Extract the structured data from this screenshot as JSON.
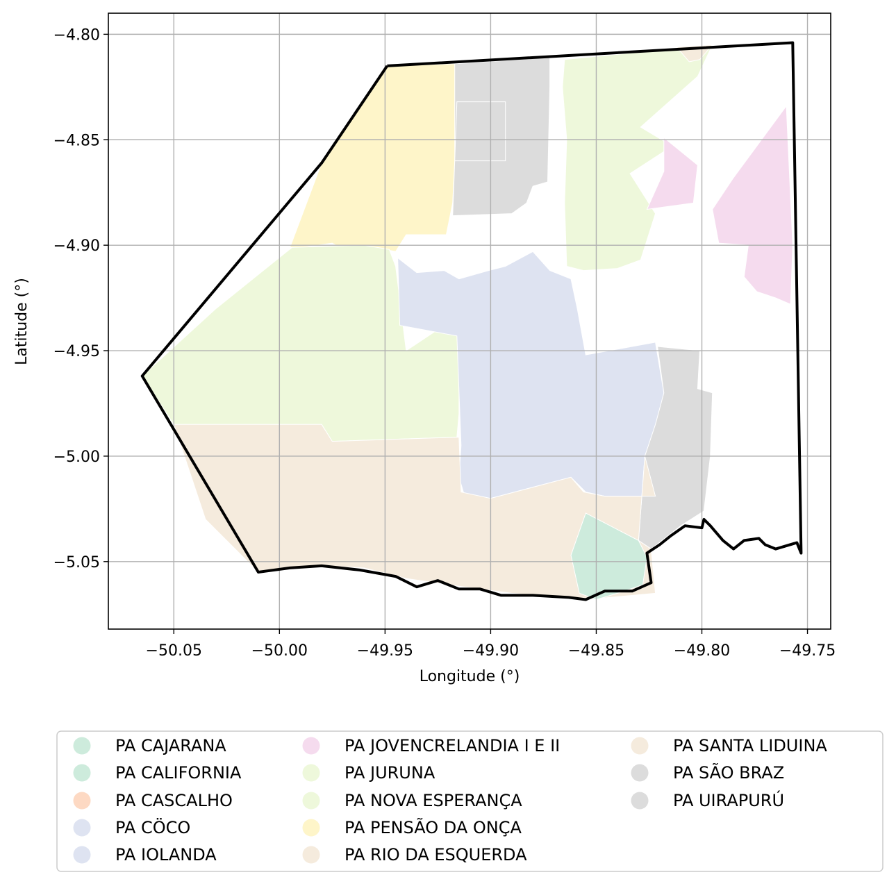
{
  "chart_data": {
    "type": "map",
    "xlabel": "Longitude (°)",
    "ylabel": "Latitude (°)",
    "xlim": [
      -50.081,
      -49.739
    ],
    "ylim": [
      -5.082,
      -4.79
    ],
    "grid": true,
    "x_ticks": [
      -50.05,
      -50.0,
      -49.95,
      -49.9,
      -49.85,
      -49.8,
      -49.75
    ],
    "x_tick_labels": [
      "−50.05",
      "−50.00",
      "−49.95",
      "−49.90",
      "−49.85",
      "−49.80",
      "−49.75"
    ],
    "y_ticks": [
      -4.8,
      -4.85,
      -4.9,
      -4.95,
      -5.0,
      -5.05
    ],
    "y_tick_labels": [
      "−4.80",
      "−4.85",
      "−4.90",
      "−4.95",
      "−5.00",
      "−5.05"
    ],
    "legend_placement": "below",
    "boundary_color": "#000000",
    "legend": [
      {
        "label": "PA CAJARANA",
        "color": "#cdebdc"
      },
      {
        "label": "PA CALIFORNIA",
        "color": "#cdebdc"
      },
      {
        "label": "PA CASCALHO",
        "color": "#fdd9c3"
      },
      {
        "label": "PA CÖCO",
        "color": "#dee3f1"
      },
      {
        "label": "PA IOLANDA",
        "color": "#dee3f1"
      },
      {
        "label": "PA JOVENCRELANDIA I E II",
        "color": "#f5dbee"
      },
      {
        "label": "PA JURUNA",
        "color": "#eef8db"
      },
      {
        "label": "PA NOVA ESPERANÇA",
        "color": "#eef8db"
      },
      {
        "label": "PA PENSÃO DA ONÇA",
        "color": "#fef5c9"
      },
      {
        "label": "PA RIO DA ESQUERDA",
        "color": "#f5ebdd"
      },
      {
        "label": "PA SANTA LIDUINA",
        "color": "#f5ebdd"
      },
      {
        "label": "PA SÃO BRAZ",
        "color": "#dcdcdc"
      },
      {
        "label": "PA UIRAPURÚ",
        "color": "#dcdcdc"
      }
    ],
    "regions": [
      {
        "name": "PA PENSÃO DA ONÇA",
        "color": "#fef5c9",
        "coords": [
          [
            -49.949,
            -4.815
          ],
          [
            -49.917,
            -4.814
          ],
          [
            -49.916,
            -4.832
          ],
          [
            -49.917,
            -4.86
          ],
          [
            -49.918,
            -4.88
          ],
          [
            -49.921,
            -4.895
          ],
          [
            -49.94,
            -4.895
          ],
          [
            -49.945,
            -4.903
          ],
          [
            -49.96,
            -4.9
          ],
          [
            -49.968,
            -4.903
          ],
          [
            -49.975,
            -4.899
          ],
          [
            -49.989,
            -4.901
          ],
          [
            -49.995,
            -4.901
          ],
          [
            -49.98,
            -4.861
          ]
        ]
      },
      {
        "name": "PA NOVA ESPERANÇA",
        "color": "#eef8db",
        "coords": [
          [
            -49.994,
            -4.901
          ],
          [
            -49.96,
            -4.9
          ],
          [
            -49.948,
            -4.902
          ],
          [
            -49.945,
            -4.91
          ],
          [
            -49.94,
            -4.95
          ],
          [
            -49.922,
            -4.938
          ],
          [
            -49.915,
            -4.94
          ],
          [
            -49.915,
            -4.98
          ],
          [
            -49.916,
            -4.991
          ],
          [
            -49.975,
            -4.993
          ],
          [
            -49.98,
            -4.985
          ],
          [
            -50.05,
            -4.985
          ],
          [
            -50.065,
            -4.962
          ],
          [
            -50.03,
            -4.93
          ]
        ]
      },
      {
        "name": "PA JURUNA",
        "color": "#eef8db",
        "coords": [
          [
            -49.865,
            -4.812
          ],
          [
            -49.795,
            -4.805
          ],
          [
            -49.802,
            -4.82
          ],
          [
            -49.829,
            -4.844
          ],
          [
            -49.814,
            -4.853
          ],
          [
            -49.834,
            -4.866
          ],
          [
            -49.822,
            -4.885
          ],
          [
            -49.829,
            -4.907
          ],
          [
            -49.84,
            -4.911
          ],
          [
            -49.856,
            -4.912
          ],
          [
            -49.864,
            -4.91
          ],
          [
            -49.865,
            -4.88
          ],
          [
            -49.864,
            -4.85
          ],
          [
            -49.866,
            -4.825
          ]
        ]
      },
      {
        "name": "PA JOVENCRELANDIA I E II",
        "color": "#f5dbee",
        "coords": [
          [
            -49.818,
            -4.849
          ],
          [
            -49.802,
            -4.862
          ],
          [
            -49.804,
            -4.88
          ],
          [
            -49.826,
            -4.883
          ],
          [
            -49.818,
            -4.865
          ]
        ]
      },
      {
        "name": "PA JOVENCRELANDIA I E II",
        "color": "#f5dbee",
        "coords": [
          [
            -49.76,
            -4.834
          ],
          [
            -49.785,
            -4.868
          ],
          [
            -49.795,
            -4.883
          ],
          [
            -49.792,
            -4.899
          ],
          [
            -49.778,
            -4.9
          ],
          [
            -49.78,
            -4.915
          ],
          [
            -49.774,
            -4.922
          ],
          [
            -49.765,
            -4.925
          ],
          [
            -49.758,
            -4.928
          ],
          [
            -49.757,
            -4.9
          ]
        ]
      },
      {
        "name": "PA UIRAPURÚ",
        "color": "#dcdcdc",
        "coords": [
          [
            -49.917,
            -4.814
          ],
          [
            -49.872,
            -4.811
          ],
          [
            -49.872,
            -4.825
          ],
          [
            -49.873,
            -4.87
          ],
          [
            -49.88,
            -4.872
          ],
          [
            -49.883,
            -4.88
          ],
          [
            -49.89,
            -4.885
          ],
          [
            -49.918,
            -4.886
          ],
          [
            -49.917,
            -4.86
          ],
          [
            -49.916,
            -4.832
          ],
          [
            -49.893,
            -4.832
          ],
          [
            -49.893,
            -4.86
          ],
          [
            -49.917,
            -4.86
          ]
        ]
      },
      {
        "name": "PA IOLANDA",
        "color": "#dee3f1",
        "coords": [
          [
            -49.944,
            -4.906
          ],
          [
            -49.935,
            -4.913
          ],
          [
            -49.922,
            -4.912
          ],
          [
            -49.915,
            -4.916
          ],
          [
            -49.901,
            -4.912
          ],
          [
            -49.893,
            -4.91
          ],
          [
            -49.88,
            -4.903
          ],
          [
            -49.872,
            -4.912
          ],
          [
            -49.862,
            -4.916
          ],
          [
            -49.859,
            -4.93
          ],
          [
            -49.855,
            -4.952
          ],
          [
            -49.822,
            -4.946
          ],
          [
            -49.818,
            -4.97
          ],
          [
            -49.825,
            -5.001
          ],
          [
            -49.822,
            -5.019
          ],
          [
            -49.846,
            -5.019
          ],
          [
            -49.855,
            -5.017
          ],
          [
            -49.862,
            -5.01
          ],
          [
            -49.9,
            -5.02
          ],
          [
            -49.912,
            -5.02
          ],
          [
            -49.915,
            -5.01
          ],
          [
            -49.914,
            -4.995
          ],
          [
            -49.916,
            -4.943
          ],
          [
            -49.943,
            -4.938
          ]
        ]
      },
      {
        "name": "PA SÃO BRAZ",
        "color": "#dcdcdc",
        "coords": [
          [
            -49.821,
            -4.948
          ],
          [
            -49.801,
            -4.95
          ],
          [
            -49.802,
            -4.968
          ],
          [
            -49.795,
            -4.97
          ],
          [
            -49.796,
            -5.0
          ],
          [
            -49.799,
            -5.026
          ],
          [
            -49.81,
            -5.033
          ],
          [
            -49.824,
            -5.044
          ],
          [
            -49.83,
            -5.04
          ],
          [
            -49.827,
            -5.0
          ],
          [
            -49.822,
            -4.985
          ],
          [
            -49.818,
            -4.97
          ]
        ]
      },
      {
        "name": "PA RIO DA ESQUERDA",
        "color": "#f5ebdd",
        "coords": [
          [
            -50.05,
            -4.985
          ],
          [
            -49.98,
            -4.985
          ],
          [
            -49.975,
            -4.993
          ],
          [
            -49.915,
            -4.991
          ],
          [
            -49.914,
            -5.017
          ],
          [
            -49.9,
            -5.02
          ],
          [
            -49.862,
            -5.01
          ],
          [
            -49.856,
            -5.017
          ],
          [
            -49.846,
            -5.019
          ],
          [
            -49.822,
            -5.019
          ],
          [
            -49.827,
            -5.0
          ],
          [
            -49.83,
            -5.04
          ],
          [
            -49.824,
            -5.044
          ],
          [
            -49.822,
            -5.065
          ],
          [
            -49.855,
            -5.068
          ],
          [
            -49.87,
            -5.067
          ],
          [
            -49.89,
            -5.065
          ],
          [
            -49.92,
            -5.061
          ],
          [
            -49.94,
            -5.058
          ],
          [
            -49.96,
            -5.053
          ],
          [
            -49.98,
            -5.052
          ],
          [
            -50.01,
            -5.055
          ],
          [
            -50.035,
            -5.03
          ]
        ]
      },
      {
        "name": "PA CALIFORNIA",
        "color": "#cdebdc",
        "coords": [
          [
            -49.855,
            -5.027
          ],
          [
            -49.862,
            -5.047
          ],
          [
            -49.858,
            -5.065
          ],
          [
            -49.85,
            -5.068
          ],
          [
            -49.84,
            -5.065
          ],
          [
            -49.828,
            -5.061
          ],
          [
            -49.826,
            -5.048
          ],
          [
            -49.83,
            -5.04
          ]
        ]
      },
      {
        "name": "PA SANTA LIDUINA",
        "color": "#f5ebdd",
        "coords": [
          [
            -49.812,
            -4.806
          ],
          [
            -49.795,
            -4.805
          ],
          [
            -49.801,
            -4.812
          ],
          [
            -49.806,
            -4.813
          ]
        ]
      }
    ],
    "boundary": [
      [
        -49.949,
        -4.815
      ],
      [
        -49.757,
        -4.804
      ],
      [
        -49.753,
        -5.046
      ],
      [
        -49.755,
        -5.041
      ],
      [
        -49.765,
        -5.044
      ],
      [
        -49.77,
        -5.042
      ],
      [
        -49.773,
        -5.039
      ],
      [
        -49.78,
        -5.04
      ],
      [
        -49.785,
        -5.044
      ],
      [
        -49.79,
        -5.04
      ],
      [
        -49.796,
        -5.033
      ],
      [
        -49.799,
        -5.03
      ],
      [
        -49.8,
        -5.034
      ],
      [
        -49.808,
        -5.033
      ],
      [
        -49.815,
        -5.038
      ],
      [
        -49.82,
        -5.042
      ],
      [
        -49.826,
        -5.046
      ],
      [
        -49.824,
        -5.06
      ],
      [
        -49.833,
        -5.064
      ],
      [
        -49.846,
        -5.064
      ],
      [
        -49.855,
        -5.068
      ],
      [
        -49.863,
        -5.067
      ],
      [
        -49.88,
        -5.066
      ],
      [
        -49.895,
        -5.066
      ],
      [
        -49.905,
        -5.063
      ],
      [
        -49.915,
        -5.063
      ],
      [
        -49.925,
        -5.059
      ],
      [
        -49.935,
        -5.062
      ],
      [
        -49.945,
        -5.057
      ],
      [
        -49.962,
        -5.054
      ],
      [
        -49.98,
        -5.052
      ],
      [
        -49.995,
        -5.053
      ],
      [
        -50.01,
        -5.055
      ],
      [
        -50.065,
        -4.962
      ],
      [
        -49.98,
        -4.861
      ],
      [
        -49.949,
        -4.815
      ]
    ]
  }
}
